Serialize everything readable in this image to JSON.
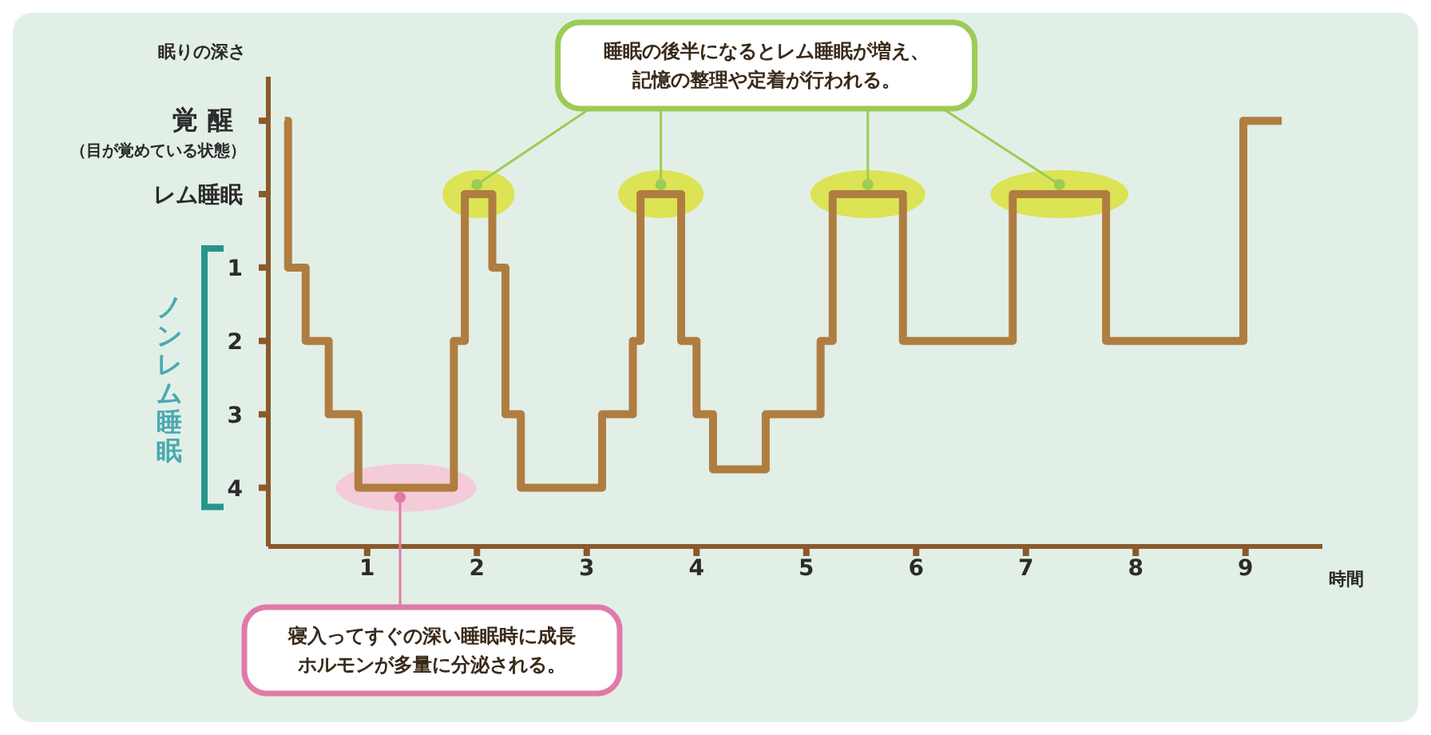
{
  "chart_data": {
    "type": "step",
    "ylabel": "眠りの深さ",
    "xlabel": "時間",
    "x": [
      0.25,
      0.28,
      0.44,
      0.65,
      0.92,
      1.79,
      1.89,
      2.14,
      2.26,
      2.4,
      3.14,
      3.42,
      3.49,
      3.86,
      4.0,
      4.15,
      4.63,
      5.13,
      5.24,
      5.88,
      6.88,
      7.73,
      8.98,
      9.33
    ],
    "series": [
      {
        "color": "#b07d40",
        "values": [
          -1,
          1,
          2,
          3,
          4,
          2,
          0,
          1,
          3,
          4,
          3,
          2,
          0,
          2,
          3,
          3.75,
          3,
          2,
          0,
          2,
          0,
          2,
          -1,
          -1
        ]
      }
    ],
    "xlim": [
      0.1,
      9.7
    ],
    "xticks": [
      1,
      2,
      3,
      4,
      5,
      6,
      7,
      8,
      9
    ],
    "ylim": [
      4.8,
      -1.6
    ],
    "yticks": [
      {
        "value": -1,
        "label": "覚醒"
      },
      {
        "value": 0,
        "label": "レム睡眠"
      },
      1,
      2,
      3,
      4
    ],
    "grid": false,
    "legend": false,
    "marker": "none",
    "line_style": "solid",
    "annotations": [
      {
        "text": "睡眠の後半になるとレム睡眠が増え、記憶の整理や定着が行われる。",
        "x": 2.0,
        "y": 0
      },
      {
        "text": "寝入ってすぐの深い睡眠時に成長ホルモンが多量に分泌される。",
        "x": 1.3,
        "y": 4
      },
      "ノンレム睡眠",
      "（目が覚めている状態）"
    ]
  }
}
